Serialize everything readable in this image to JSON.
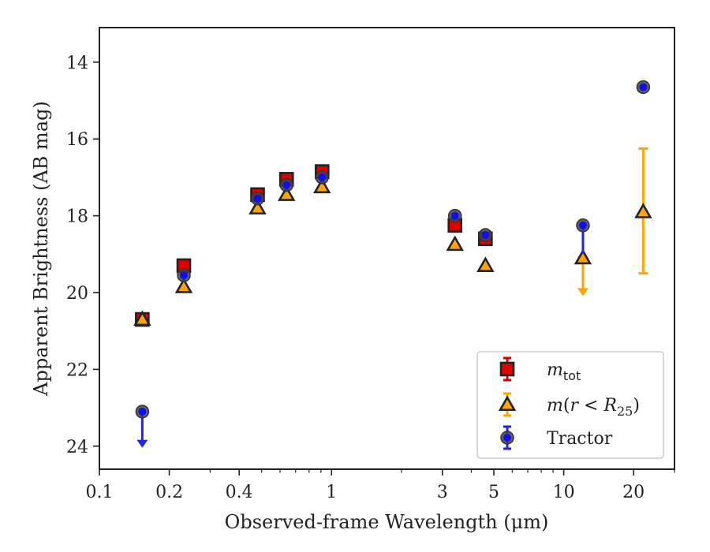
{
  "chart_data": {
    "type": "scatter",
    "xlabel": "Observed-frame Wavelength (μm)",
    "ylabel": "Apparent Brightness (AB mag)",
    "xscale": "log",
    "xlim": [
      0.1,
      30
    ],
    "ylim": [
      24.6,
      13.1
    ],
    "y_inverted": true,
    "x_ticks": [
      {
        "value": 0.1,
        "label": "0.1"
      },
      {
        "value": 0.2,
        "label": "0.2"
      },
      {
        "value": 0.4,
        "label": "0.4"
      },
      {
        "value": 1,
        "label": "1"
      },
      {
        "value": 3,
        "label": "3"
      },
      {
        "value": 5,
        "label": "5"
      },
      {
        "value": 10,
        "label": "10"
      },
      {
        "value": 20,
        "label": "20"
      }
    ],
    "y_ticks": [
      {
        "value": 14,
        "label": "14"
      },
      {
        "value": 16,
        "label": "16"
      },
      {
        "value": 18,
        "label": "18"
      },
      {
        "value": 20,
        "label": "20"
      },
      {
        "value": 22,
        "label": "22"
      },
      {
        "value": 24,
        "label": "24"
      }
    ],
    "legend_position": "lower-right",
    "series": [
      {
        "key": "mtot",
        "legend": "m_tot",
        "marker": "square",
        "color": "#e00000",
        "errcolor": "#e00000",
        "points": [
          {
            "x": 0.153,
            "y": 20.7
          },
          {
            "x": 0.231,
            "y": 19.3
          },
          {
            "x": 0.48,
            "y": 17.45
          },
          {
            "x": 0.64,
            "y": 17.05
          },
          {
            "x": 0.91,
            "y": 16.85
          },
          {
            "x": 3.4,
            "y": 18.25
          },
          {
            "x": 4.6,
            "y": 18.6
          }
        ]
      },
      {
        "key": "mr25",
        "legend": "m(r < R25)",
        "marker": "triangle",
        "color": "#ffa500",
        "errcolor": "#ffa500",
        "points": [
          {
            "x": 0.153,
            "y": 20.7
          },
          {
            "x": 0.231,
            "y": 19.85
          },
          {
            "x": 0.48,
            "y": 17.8
          },
          {
            "x": 0.64,
            "y": 17.45
          },
          {
            "x": 0.91,
            "y": 17.25
          },
          {
            "x": 3.4,
            "y": 18.75
          },
          {
            "x": 4.6,
            "y": 19.3
          },
          {
            "x": 12.1,
            "y": 19.1,
            "upper_limit": true,
            "arrow_to": 20.05
          },
          {
            "x": 22.0,
            "y": 17.9,
            "yerr_low": 16.25,
            "yerr_high": 19.5
          }
        ]
      },
      {
        "key": "tractor",
        "legend": "Tractor",
        "marker": "circle",
        "color": "#1010e8",
        "errcolor": "#2222ee",
        "points": [
          {
            "x": 0.153,
            "y": 23.1,
            "upper_limit": true,
            "arrow_to": 24.0
          },
          {
            "x": 0.231,
            "y": 19.55
          },
          {
            "x": 0.48,
            "y": 17.55
          },
          {
            "x": 0.64,
            "y": 17.2
          },
          {
            "x": 0.91,
            "y": 17.0
          },
          {
            "x": 3.4,
            "y": 18.0
          },
          {
            "x": 4.6,
            "y": 18.5
          },
          {
            "x": 12.1,
            "y": 18.25,
            "err_to": 19.0
          },
          {
            "x": 22.0,
            "y": 14.65
          }
        ]
      }
    ]
  }
}
